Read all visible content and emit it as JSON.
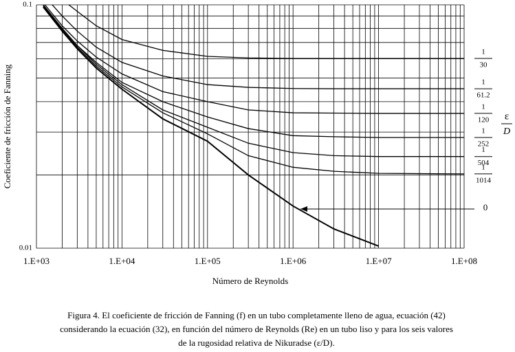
{
  "chart_data": {
    "type": "line",
    "x_label": "Número de Reynolds",
    "y_label": "Coeficiente de fricción de Fanning",
    "log_x": true,
    "log_y": true,
    "grid": true,
    "xlim": [
      1000,
      100000000
    ],
    "ylim": [
      0.01,
      0.1
    ],
    "xticks": [
      {
        "value": 1000,
        "label": "1.E+03"
      },
      {
        "value": 10000,
        "label": "1.E+04"
      },
      {
        "value": 100000,
        "label": "1.E+05"
      },
      {
        "value": 1000000,
        "label": "1.E+06"
      },
      {
        "value": 10000000,
        "label": "1.E+07"
      },
      {
        "value": 100000000,
        "label": "1.E+08"
      }
    ],
    "yticks": [
      0.01,
      0.1
    ],
    "x_gridlines": [
      2000,
      3000,
      4000,
      5000,
      6000,
      7000,
      8000,
      9000,
      20000,
      30000,
      40000,
      50000,
      60000,
      70000,
      80000,
      90000,
      200000,
      300000,
      400000,
      500000,
      600000,
      700000,
      800000,
      900000,
      2000000,
      3000000,
      4000000,
      5000000,
      6000000,
      7000000,
      8000000,
      9000000,
      20000000,
      30000000,
      40000000,
      50000000,
      60000000,
      70000000,
      80000000,
      90000000
    ],
    "y_gridlines": [
      0.02,
      0.03,
      0.04,
      0.05,
      0.06,
      0.07,
      0.08,
      0.09
    ],
    "legend_title": {
      "numerator": "ε",
      "denominator": "D"
    },
    "x": [
      1200,
      2000,
      3000,
      5000,
      10000,
      30000,
      100000,
      300000,
      1000000,
      3000000,
      10000000,
      100000000
    ],
    "series": [
      {
        "numerator": "1",
        "denominator": "30",
        "color": "#000000",
        "values": [
          null,
          0.105,
          0.094,
          0.082,
          0.072,
          0.065,
          0.0614,
          0.0605,
          0.0602,
          0.0602,
          0.0602,
          0.0602
        ]
      },
      {
        "numerator": "1",
        "denominator": "61.2",
        "color": "#000000",
        "values": [
          0.11,
          0.09,
          0.078,
          0.067,
          0.058,
          0.051,
          0.047,
          0.0458,
          0.0453,
          0.0452,
          0.0452,
          0.0452
        ]
      },
      {
        "numerator": "1",
        "denominator": "120",
        "color": "#000000",
        "values": [
          0.102,
          0.082,
          0.071,
          0.061,
          0.052,
          0.044,
          0.04,
          0.037,
          0.036,
          0.0359,
          0.0358,
          0.0358
        ]
      },
      {
        "numerator": "1",
        "denominator": "252",
        "color": "#000000",
        "values": [
          0.1,
          0.08,
          0.068,
          0.058,
          0.048,
          0.04,
          0.0346,
          0.031,
          0.029,
          0.0287,
          0.0285,
          0.0285
        ]
      },
      {
        "numerator": "1",
        "denominator": "504",
        "color": "#000000",
        "values": [
          0.1,
          0.08,
          0.068,
          0.057,
          0.047,
          0.037,
          0.0314,
          0.027,
          0.0247,
          0.024,
          0.0238,
          0.0238
        ]
      },
      {
        "numerator": "1",
        "denominator": "1014",
        "color": "#000000",
        "values": [
          0.099,
          0.079,
          0.067,
          0.056,
          0.046,
          0.036,
          0.0295,
          0.024,
          0.0215,
          0.0207,
          0.0203,
          0.0202
        ]
      },
      {
        "name": "0",
        "color": "#000000",
        "values": [
          0.098,
          0.078,
          0.066,
          0.055,
          0.045,
          0.034,
          0.0275,
          0.02,
          0.0149,
          0.012,
          0.0102,
          null
        ]
      }
    ],
    "caption": [
      "Figura 4. El coeficiente de fricción de Fanning (f) en un tubo completamente lleno de agua, ecuación (42)",
      "considerando la ecuación (32), en función del número de Reynolds (Re) en un tubo liso y para los seis valores",
      "de la rugosidad relativa de Nikuradse (ε/D)."
    ]
  }
}
